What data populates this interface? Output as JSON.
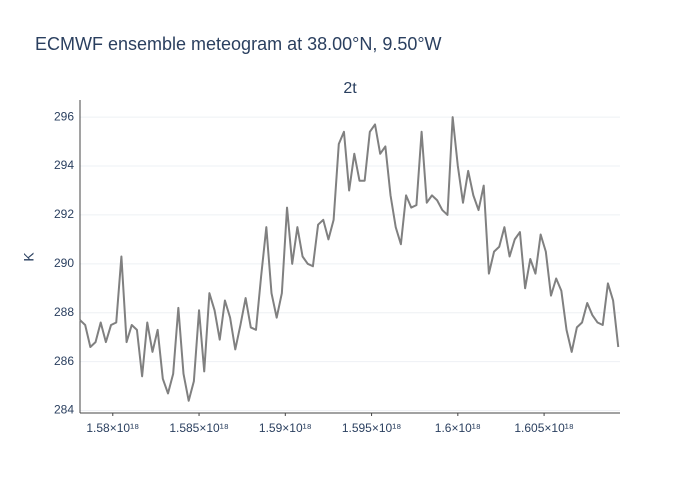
{
  "chart_data": {
    "type": "line",
    "title": "ECMWF ensemble meteogram at 38.00°N, 9.50°W",
    "subtitle": "2t",
    "y_label": "K",
    "color": "#808080",
    "grid": true,
    "xlim": [
      1.5781e+18,
      1.6094e+18
    ],
    "ylim": [
      283.9,
      296.7
    ],
    "xticks": [
      {
        "value": 1.58e+18,
        "label": "1.58×10¹⁸"
      },
      {
        "value": 1.585e+18,
        "label": "1.585×10¹⁸"
      },
      {
        "value": 1.59e+18,
        "label": "1.59×10¹⁸"
      },
      {
        "value": 1.595e+18,
        "label": "1.595×10¹⁸"
      },
      {
        "value": 1.6e+18,
        "label": "1.6×10¹⁸"
      },
      {
        "value": 1.605e+18,
        "label": "1.605×10¹⁸"
      }
    ],
    "yticks": [
      284,
      286,
      288,
      290,
      292,
      294,
      296
    ],
    "x": [
      1.5781e+18,
      1.5784e+18,
      1.5787e+18,
      1.579e+18,
      1.5793e+18,
      1.5796e+18,
      1.5799e+18,
      1.5802e+18,
      1.5805e+18,
      1.5808e+18,
      1.5811e+18,
      1.5814e+18,
      1.5817e+18,
      1.582e+18,
      1.5823e+18,
      1.5826e+18,
      1.5829e+18,
      1.5832e+18,
      1.5835e+18,
      1.5838e+18,
      1.5841e+18,
      1.5844e+18,
      1.5847e+18,
      1.585e+18,
      1.5853e+18,
      1.5856e+18,
      1.5859e+18,
      1.5862e+18,
      1.5865e+18,
      1.5868e+18,
      1.5871e+18,
      1.5874e+18,
      1.5877e+18,
      1.588e+18,
      1.5883e+18,
      1.5886e+18,
      1.5889e+18,
      1.5892e+18,
      1.5895e+18,
      1.5898e+18,
      1.5901e+18,
      1.5904e+18,
      1.5907e+18,
      1.591e+18,
      1.5913e+18,
      1.5916e+18,
      1.5919e+18,
      1.5922e+18,
      1.5925e+18,
      1.5928e+18,
      1.5931e+18,
      1.5934e+18,
      1.5937e+18,
      1.594e+18,
      1.5943e+18,
      1.5946e+18,
      1.5949e+18,
      1.5952e+18,
      1.5955e+18,
      1.5958e+18,
      1.5961e+18,
      1.5964e+18,
      1.5967e+18,
      1.597e+18,
      1.5973e+18,
      1.5976e+18,
      1.5979e+18,
      1.5982e+18,
      1.5985e+18,
      1.5988e+18,
      1.5991e+18,
      1.5994e+18,
      1.5997e+18,
      1.6e+18,
      1.6003e+18,
      1.6006e+18,
      1.6009e+18,
      1.6012e+18,
      1.6015e+18,
      1.6018e+18,
      1.6021e+18,
      1.6024e+18,
      1.6027e+18,
      1.603e+18,
      1.6033e+18,
      1.6036e+18,
      1.6039e+18,
      1.6042e+18,
      1.6045e+18,
      1.6048e+18,
      1.6051e+18,
      1.6054e+18,
      1.6057e+18,
      1.606e+18,
      1.6063e+18,
      1.6066e+18,
      1.6069e+18,
      1.6072e+18,
      1.6075e+18,
      1.6078e+18,
      1.6081e+18,
      1.6084e+18,
      1.6087e+18,
      1.609e+18,
      1.6093e+18
    ],
    "values": [
      287.7,
      287.5,
      286.6,
      286.8,
      287.6,
      286.8,
      287.5,
      287.6,
      290.3,
      286.8,
      287.5,
      287.3,
      285.4,
      287.6,
      286.4,
      287.3,
      285.3,
      284.7,
      285.5,
      288.2,
      285.5,
      284.4,
      285.2,
      288.1,
      285.6,
      288.8,
      288.1,
      286.9,
      288.5,
      287.8,
      286.5,
      287.5,
      288.6,
      287.4,
      287.3,
      289.5,
      291.5,
      288.8,
      287.8,
      288.8,
      292.3,
      290.0,
      291.5,
      290.3,
      290.0,
      289.9,
      291.6,
      291.8,
      291.0,
      291.8,
      294.9,
      295.4,
      293.0,
      294.5,
      293.4,
      293.4,
      295.4,
      295.7,
      294.5,
      294.8,
      292.8,
      291.5,
      290.8,
      292.8,
      292.3,
      292.4,
      295.4,
      292.5,
      292.8,
      292.6,
      292.2,
      292.0,
      296.0,
      294.0,
      292.5,
      293.8,
      292.8,
      292.2,
      293.2,
      289.6,
      290.5,
      290.7,
      291.5,
      290.3,
      291.0,
      291.3,
      289.0,
      290.2,
      289.6,
      291.2,
      290.5,
      288.7,
      289.4,
      288.9,
      287.3,
      286.4,
      287.4,
      287.6,
      288.4,
      287.9,
      287.6,
      287.5,
      289.2,
      288.5,
      286.6
    ]
  }
}
